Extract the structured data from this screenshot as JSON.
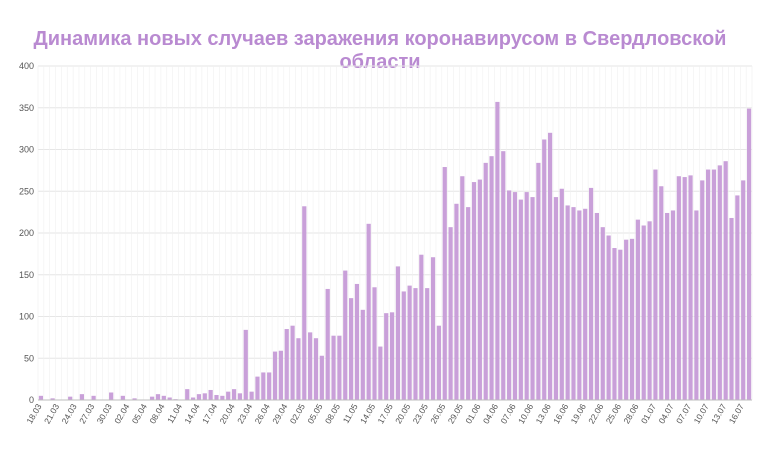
{
  "colors": {
    "bar": "#c9a0d9",
    "title": "#b98ad1",
    "grid": "#e6e6e6",
    "axis": "#555555"
  },
  "chart_data": {
    "type": "bar",
    "title": "Динамика новых случаев заражения коронавирусом в Свердловской области",
    "xlabel": "",
    "ylabel": "",
    "ylim": [
      0,
      400
    ],
    "yticks": [
      0,
      50,
      100,
      150,
      200,
      250,
      300,
      350,
      400
    ],
    "grid": true,
    "tick_labels": [
      "18.03",
      "21.03",
      "24.03",
      "27.03",
      "30.03",
      "02.04",
      "05.04",
      "08.04",
      "11.04",
      "14.04",
      "17.04",
      "20.04",
      "23.04",
      "26.04",
      "29.04",
      "02.05",
      "05.05",
      "08.05",
      "11.05",
      "14.05",
      "17.05",
      "20.05",
      "23.05",
      "26.05",
      "29.05",
      "01.06",
      "04.06",
      "07.06",
      "10.06",
      "13.06",
      "16.06",
      "19.06",
      "22.06",
      "25.06",
      "28.06",
      "01.07",
      "04.07",
      "07.07",
      "10.07",
      "13.07",
      "16.07"
    ],
    "values": [
      5,
      0,
      2,
      0,
      0,
      4,
      0,
      7,
      0,
      5,
      0,
      0,
      9,
      0,
      5,
      0,
      2,
      0,
      0,
      4,
      7,
      5,
      3,
      1,
      0,
      13,
      3,
      7,
      8,
      12,
      6,
      5,
      10,
      13,
      8,
      84,
      10,
      28,
      33,
      33,
      58,
      59,
      85,
      89,
      74,
      232,
      81,
      74,
      53,
      133,
      77,
      77,
      155,
      122,
      139,
      108,
      211,
      135,
      64,
      104,
      105,
      160,
      130,
      137,
      134,
      174,
      134,
      171,
      89,
      279,
      207,
      235,
      268,
      231,
      261,
      264,
      284,
      292,
      357,
      298,
      251,
      249,
      240,
      249,
      243,
      284,
      312,
      320,
      243,
      253,
      233,
      231,
      227,
      229,
      254,
      224,
      207,
      197,
      182,
      180,
      192,
      193,
      216,
      209,
      214,
      276,
      256,
      224,
      227,
      268,
      267,
      269,
      227,
      263,
      276,
      276,
      281,
      286,
      218,
      245,
      263,
      349
    ]
  }
}
